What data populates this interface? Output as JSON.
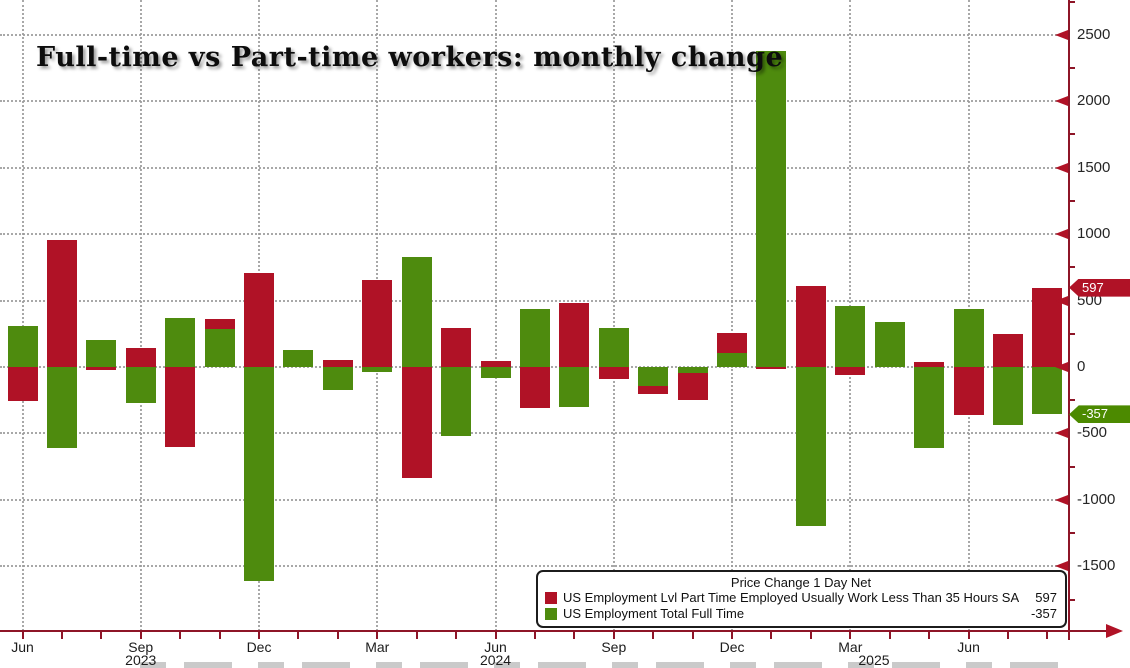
{
  "title": "Full-time vs Part-time workers: monthly change",
  "colors": {
    "part_time": "#b01226",
    "full_time": "#4e8b0e",
    "tag_part_time": "#b01226",
    "tag_full_time": "#4c8a00",
    "axis": "#8e1527",
    "gridline": "#9a9a9a"
  },
  "y_axis": {
    "ticks": [
      2500,
      2000,
      1500,
      1000,
      500,
      0,
      -500,
      -1000,
      -1500
    ],
    "minor_ticks": [
      2750,
      2250,
      1750,
      1250,
      750,
      250,
      -250,
      -750,
      -1250,
      -1750
    ]
  },
  "x_axis": {
    "tick_labels": [
      "Jun",
      "Sep",
      "Dec",
      "Mar",
      "Jun",
      "Sep",
      "Dec",
      "Mar",
      "Jun"
    ],
    "year_labels": [
      {
        "text": "2023",
        "month_index": 3
      },
      {
        "text": "2024",
        "month_index": 12
      },
      {
        "text": "2025",
        "month_index": 21.6
      }
    ]
  },
  "tags": {
    "part_time": "597",
    "full_time": "-357"
  },
  "legend": {
    "title": "Price Change 1 Day Net",
    "entries": [
      {
        "label": "US Employment Lvl Part Time Employed Usually Work Less Than 35 Hours SA",
        "value": "597"
      },
      {
        "label": "US Employment Total Full Time",
        "value": "-357"
      }
    ]
  },
  "chart_data": {
    "type": "bar",
    "title": "Full-time vs Part-time workers: monthly change",
    "xlabel": "",
    "ylabel": "",
    "ylim": [
      -2000,
      2770
    ],
    "ytick_step": 500,
    "grid": true,
    "legend_position": "bottom-right",
    "categories": [
      "Jun 2023",
      "Jul 2023",
      "Aug 2023",
      "Sep 2023",
      "Oct 2023",
      "Nov 2023",
      "Dec 2023",
      "Jan 2024",
      "Feb 2024",
      "Mar 2024",
      "Apr 2024",
      "May 2024",
      "Jun 2024",
      "Jul 2024",
      "Aug 2024",
      "Sep 2024",
      "Oct 2024",
      "Nov 2024",
      "Dec 2024",
      "Jan 2025",
      "Feb 2025",
      "Mar 2025",
      "Apr 2025",
      "May 2025",
      "Jun 2025",
      "Jul 2025",
      "Aug 2025"
    ],
    "series": [
      {
        "name": "US Employment Lvl Part Time Employed Usually Work Less Than 35 Hours SA",
        "color": "#b01226",
        "values": [
          -255,
          955,
          -20,
          145,
          -600,
          365,
          710,
          0,
          50,
          655,
          -835,
          295,
          48,
          -310,
          485,
          -90,
          -200,
          -245,
          255,
          -15,
          610,
          -60,
          0,
          40,
          -360,
          250,
          597
        ]
      },
      {
        "name": "US Employment Total Full Time",
        "color": "#4e8b0e",
        "values": [
          310,
          -610,
          205,
          -270,
          370,
          285,
          -1610,
          130,
          -170,
          -35,
          830,
          -520,
          -80,
          435,
          -300,
          290,
          -140,
          -45,
          105,
          2380,
          -1200,
          460,
          340,
          -610,
          435,
          -440,
          -357
        ]
      }
    ],
    "last_value_labels": {
      "part_time": 597,
      "full_time": -357
    }
  }
}
